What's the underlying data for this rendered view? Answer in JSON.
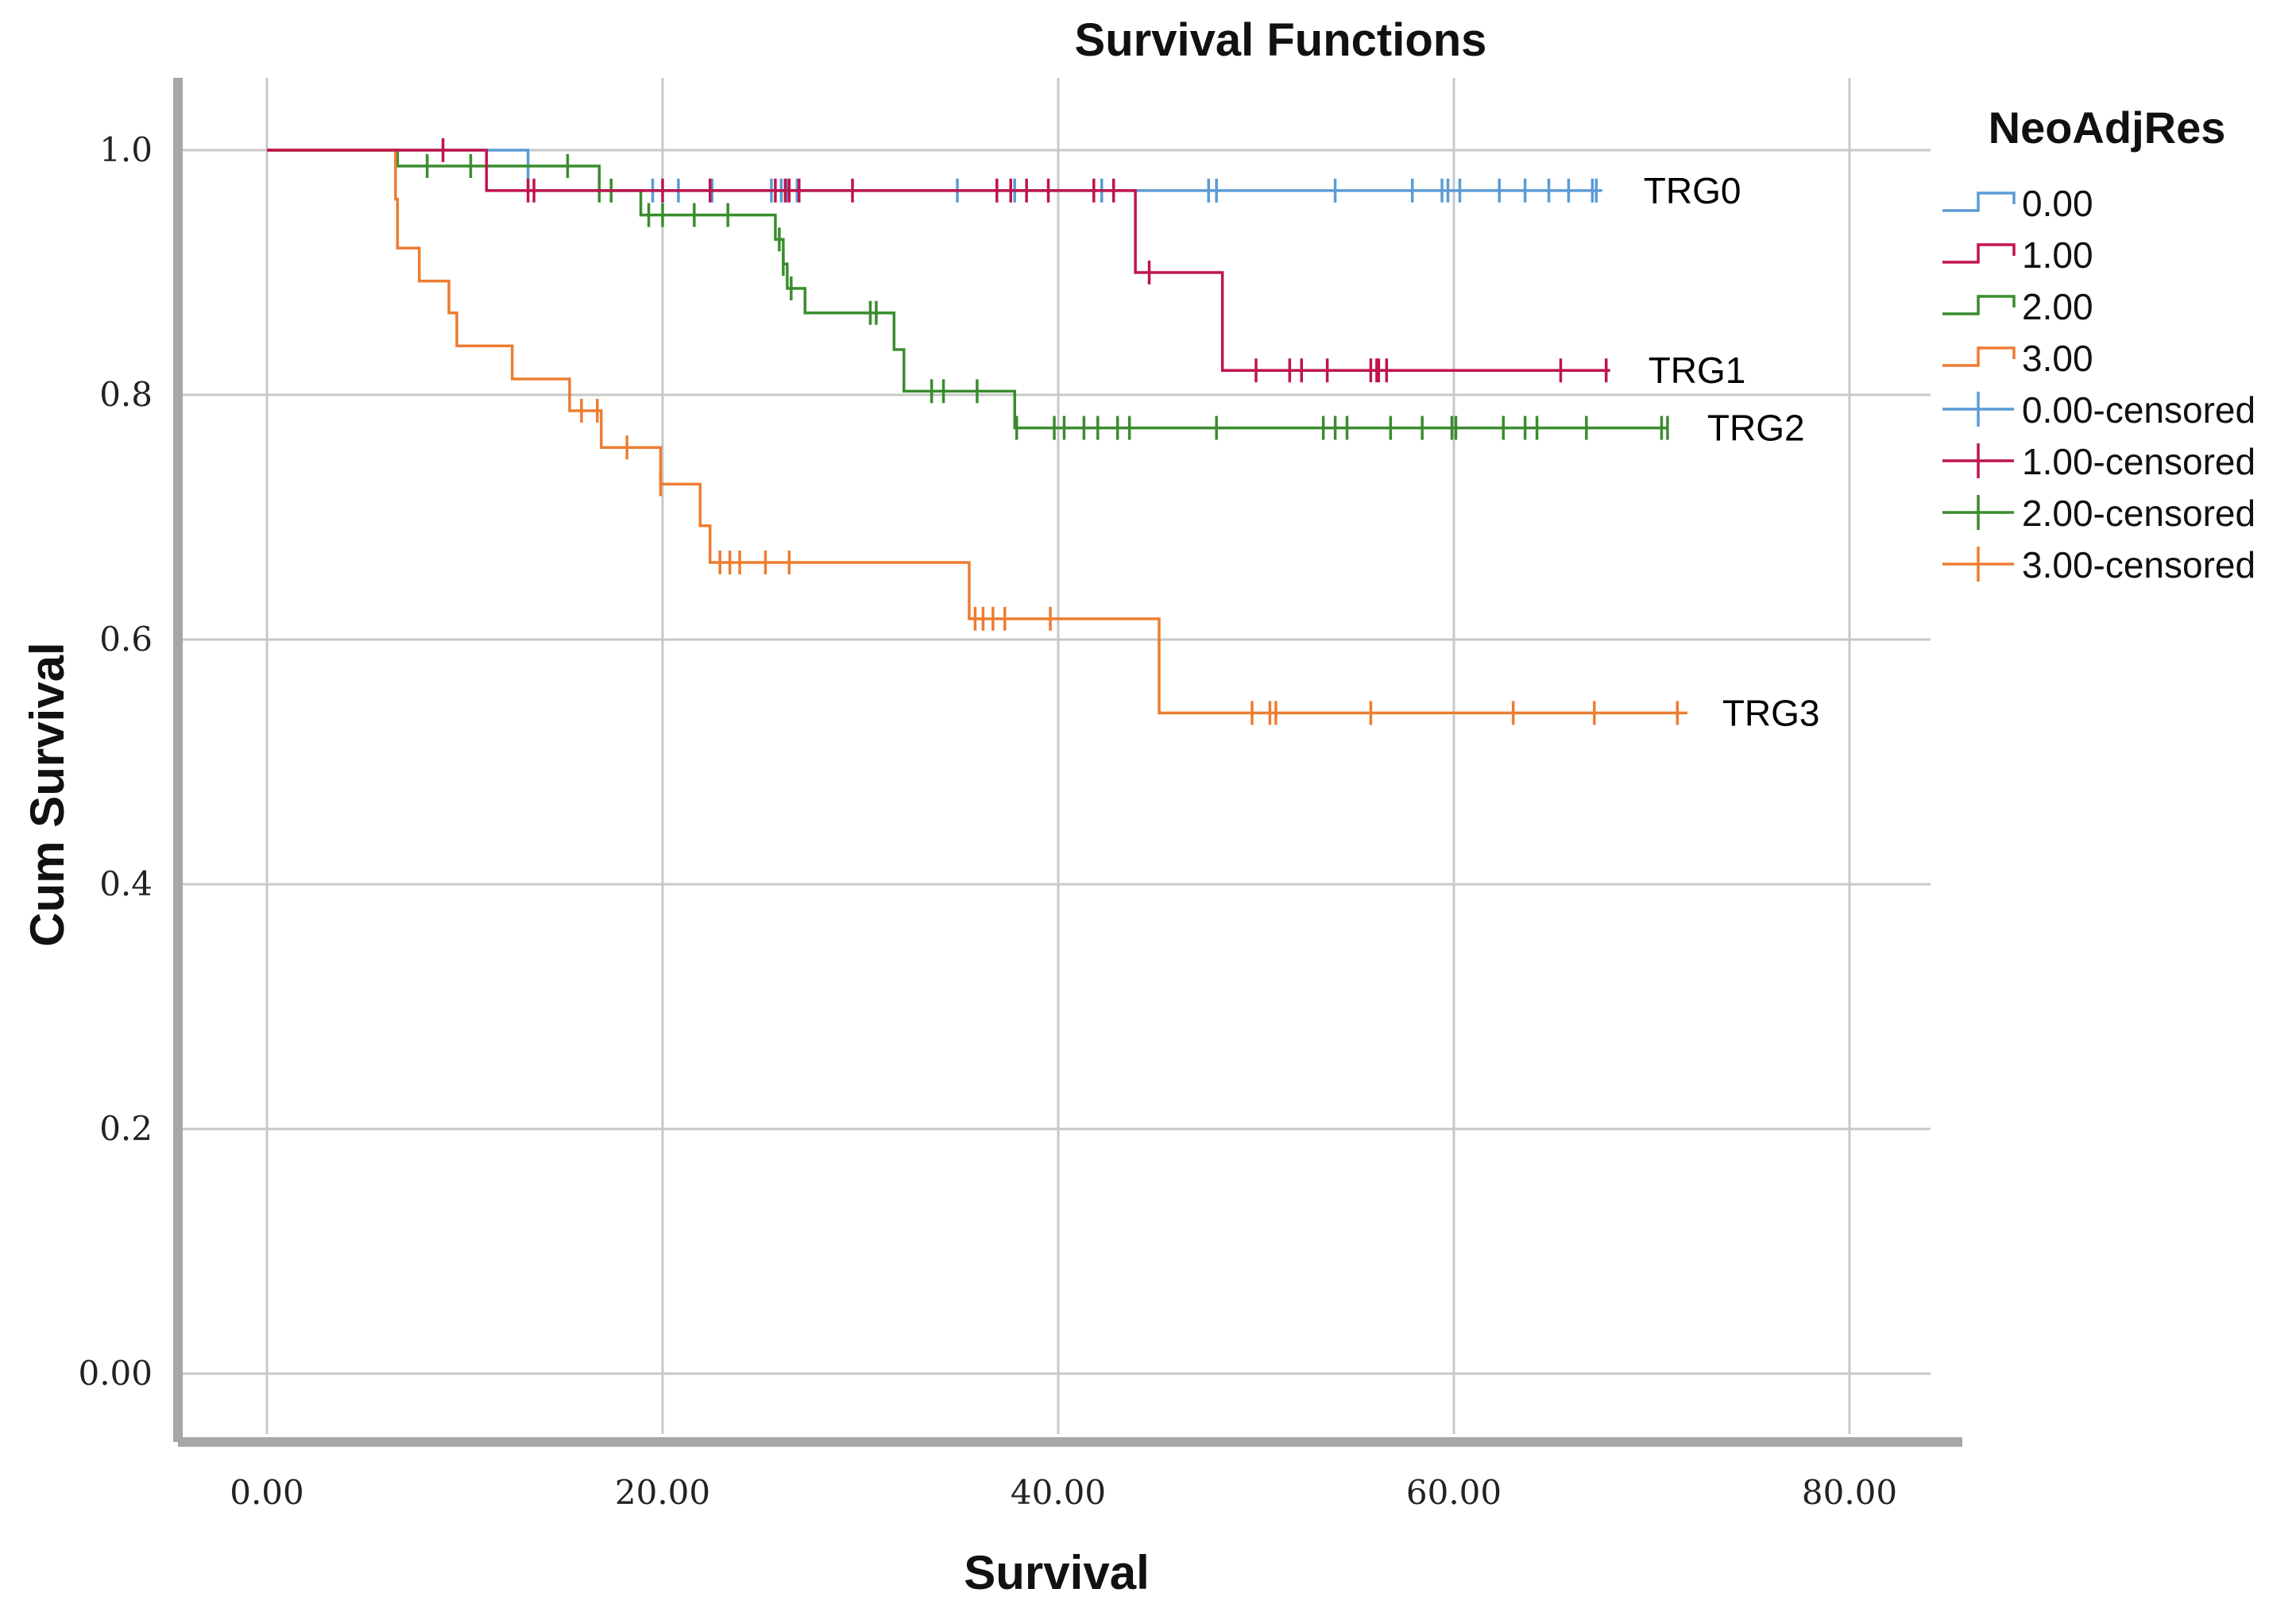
{
  "chart_data": {
    "type": "line",
    "subtype": "kaplan-meier-step",
    "title": "Survival Functions",
    "xlabel": "Survival",
    "ylabel": "Cum Survival",
    "xlim": [
      0,
      84
    ],
    "ylim": [
      0,
      1.05
    ],
    "x_ticks": [
      0,
      20,
      40,
      60,
      80
    ],
    "x_tick_labels": [
      "0.00",
      "20.00",
      "40.00",
      "60.00",
      "80.00"
    ],
    "y_ticks": [
      0,
      0.2,
      0.4,
      0.6,
      0.8,
      1.0
    ],
    "y_tick_labels": [
      "0.00",
      "0.2",
      "0.4",
      "0.6",
      "0.8",
      "1.0"
    ],
    "grid": true,
    "legend": {
      "title": "NeoAdjRes",
      "placement": "right",
      "entries": [
        "0.00",
        "1.00",
        "2.00",
        "3.00",
        "0.00-censored",
        "1.00-censored",
        "2.00-censored",
        "3.00-censored"
      ]
    },
    "series": [
      {
        "name": "0.00",
        "label": "TRG0",
        "color": "#5b9bd5",
        "steps": [
          [
            0,
            1.0
          ],
          [
            13.2,
            0.967
          ]
        ],
        "end_x": 67.5,
        "censored": [
          19.5,
          20.8,
          22.5,
          25.5,
          26.0,
          26.3,
          26.8,
          34.9,
          37.8,
          42.2,
          47.6,
          48.0,
          54.0,
          57.9,
          59.4,
          59.7,
          60.3,
          62.3,
          63.6,
          64.8,
          65.8,
          67.0,
          67.2
        ]
      },
      {
        "name": "1.00",
        "label": "TRG1",
        "color": "#c0144c",
        "steps": [
          [
            0,
            1.0
          ],
          [
            11.1,
            0.967
          ],
          [
            43.9,
            0.9
          ],
          [
            48.3,
            0.82
          ]
        ],
        "end_x": 67.9,
        "censored": [
          8.9,
          13.2,
          13.5,
          20.0,
          22.4,
          25.7,
          26.2,
          26.4,
          26.9,
          29.6,
          36.9,
          37.6,
          38.4,
          39.5,
          41.8,
          42.8,
          44.6,
          50.0,
          51.7,
          52.3,
          53.6,
          55.8,
          56.1,
          56.2,
          56.6,
          65.4,
          67.7
        ]
      },
      {
        "name": "2.00",
        "label": "TRG2",
        "color": "#3a8c2e",
        "steps": [
          [
            0,
            1.0
          ],
          [
            6.6,
            0.987
          ],
          [
            16.8,
            0.967
          ],
          [
            18.9,
            0.947
          ],
          [
            25.7,
            0.927
          ],
          [
            26.1,
            0.907
          ],
          [
            26.3,
            0.887
          ],
          [
            27.2,
            0.867
          ],
          [
            31.7,
            0.837
          ],
          [
            32.2,
            0.803
          ],
          [
            37.8,
            0.773
          ]
        ],
        "end_x": 70.8,
        "censored": [
          8.1,
          10.3,
          15.2,
          16.8,
          17.4,
          19.3,
          20.0,
          21.6,
          23.3,
          25.9,
          26.1,
          26.5,
          30.5,
          30.8,
          33.6,
          34.2,
          35.9,
          37.9,
          39.8,
          40.3,
          41.3,
          42.0,
          43.0,
          43.6,
          48.0,
          53.4,
          54.0,
          54.6,
          56.8,
          58.4,
          59.9,
          60.1,
          62.5,
          63.6,
          64.2,
          66.7,
          70.5,
          70.8
        ]
      },
      {
        "name": "3.00",
        "label": "TRG3",
        "color": "#ed7d31",
        "steps": [
          [
            0,
            1.0
          ],
          [
            6.5,
            0.96
          ],
          [
            6.6,
            0.92
          ],
          [
            7.7,
            0.893
          ],
          [
            9.2,
            0.867
          ],
          [
            9.6,
            0.84
          ],
          [
            12.4,
            0.813
          ],
          [
            15.3,
            0.787
          ],
          [
            16.9,
            0.757
          ],
          [
            19.9,
            0.727
          ],
          [
            21.9,
            0.693
          ],
          [
            22.4,
            0.663
          ],
          [
            35.5,
            0.617
          ],
          [
            45.1,
            0.54
          ]
        ],
        "end_x": 71.8,
        "censored": [
          15.9,
          16.7,
          18.2,
          19.9,
          22.9,
          23.4,
          23.9,
          25.2,
          26.4,
          35.8,
          36.2,
          36.7,
          37.3,
          39.6,
          49.8,
          50.7,
          51.0,
          55.8,
          63.0,
          67.1,
          71.3
        ]
      }
    ]
  }
}
